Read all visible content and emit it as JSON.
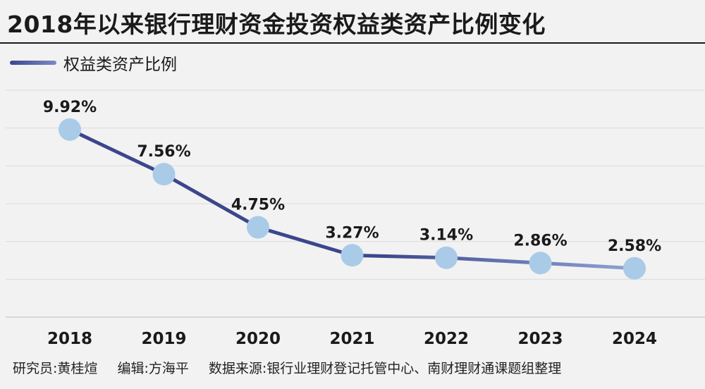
{
  "title": "2018年以来银行理财资金投资权益类资产比例变化",
  "legend": {
    "label": "权益类资产比例"
  },
  "footer": {
    "researcher": "研究员:黄桂煊",
    "editor": "编辑:方海平",
    "source": "数据来源:银行业理财登记托管中心、南财理财通课题组整理"
  },
  "colors": {
    "line_dark": "#3c468c",
    "line_light": "#8fa3d6",
    "marker": "#a9cbe8",
    "grid": "#dcdcdc",
    "background": "#f2f2f2"
  },
  "chart_data": {
    "type": "line",
    "categories": [
      "2018",
      "2019",
      "2020",
      "2021",
      "2022",
      "2023",
      "2024"
    ],
    "series": [
      {
        "name": "权益类资产比例",
        "values": [
          9.92,
          7.56,
          4.75,
          3.27,
          3.14,
          2.86,
          2.58
        ],
        "labels": [
          "9.92%",
          "7.56%",
          "4.75%",
          "3.27%",
          "3.14%",
          "2.86%",
          "2.58%"
        ]
      }
    ],
    "ylim": [
      0,
      12
    ],
    "grid": true,
    "legend_position": "top-left"
  }
}
